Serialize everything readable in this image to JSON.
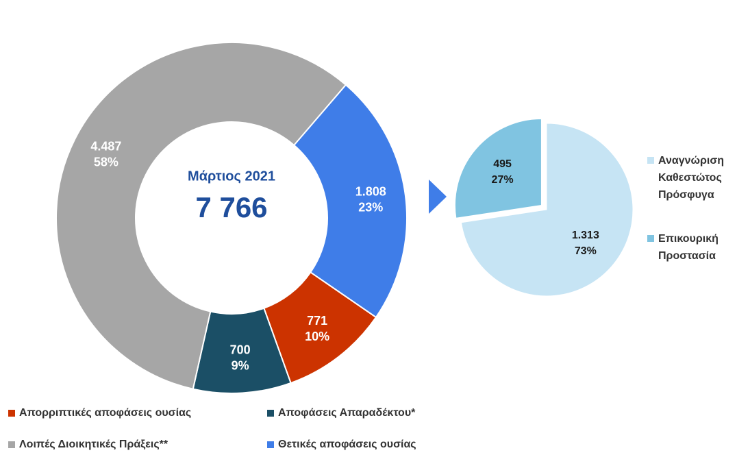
{
  "chart_data": [
    {
      "type": "donut",
      "title": "Μάρτιος 2021",
      "total": 7766,
      "total_label": "7 766",
      "categories": [
        "Απορριπτικές αποφάσεις ουσίας",
        "Αποφάσεις Απαραδέκτου*",
        "Λοιπές Διοικητικές Πράξεις**",
        "Θετικές αποφάσεις ουσίας"
      ],
      "values": [
        771,
        700,
        4487,
        1808
      ],
      "value_labels": [
        "771",
        "700",
        "4.487",
        "1.808"
      ],
      "shares": [
        10,
        9,
        58,
        23
      ],
      "share_labels": [
        "10%",
        "9%",
        "58%",
        "23%"
      ],
      "colors": [
        "#cc3300",
        "#1b4f66",
        "#a6a6a6",
        "#3f7de8"
      ]
    },
    {
      "type": "pie",
      "categories": [
        "Αναγνώριση Καθεστώτος Πρόσφυγα",
        "Επικουρική Προστασία"
      ],
      "values": [
        1313,
        495
      ],
      "value_labels": [
        "1.313",
        "495"
      ],
      "shares": [
        73,
        27
      ],
      "share_labels": [
        "73%",
        "27%"
      ],
      "colors": [
        "#c6e4f4",
        "#80c4e1"
      ]
    }
  ]
}
